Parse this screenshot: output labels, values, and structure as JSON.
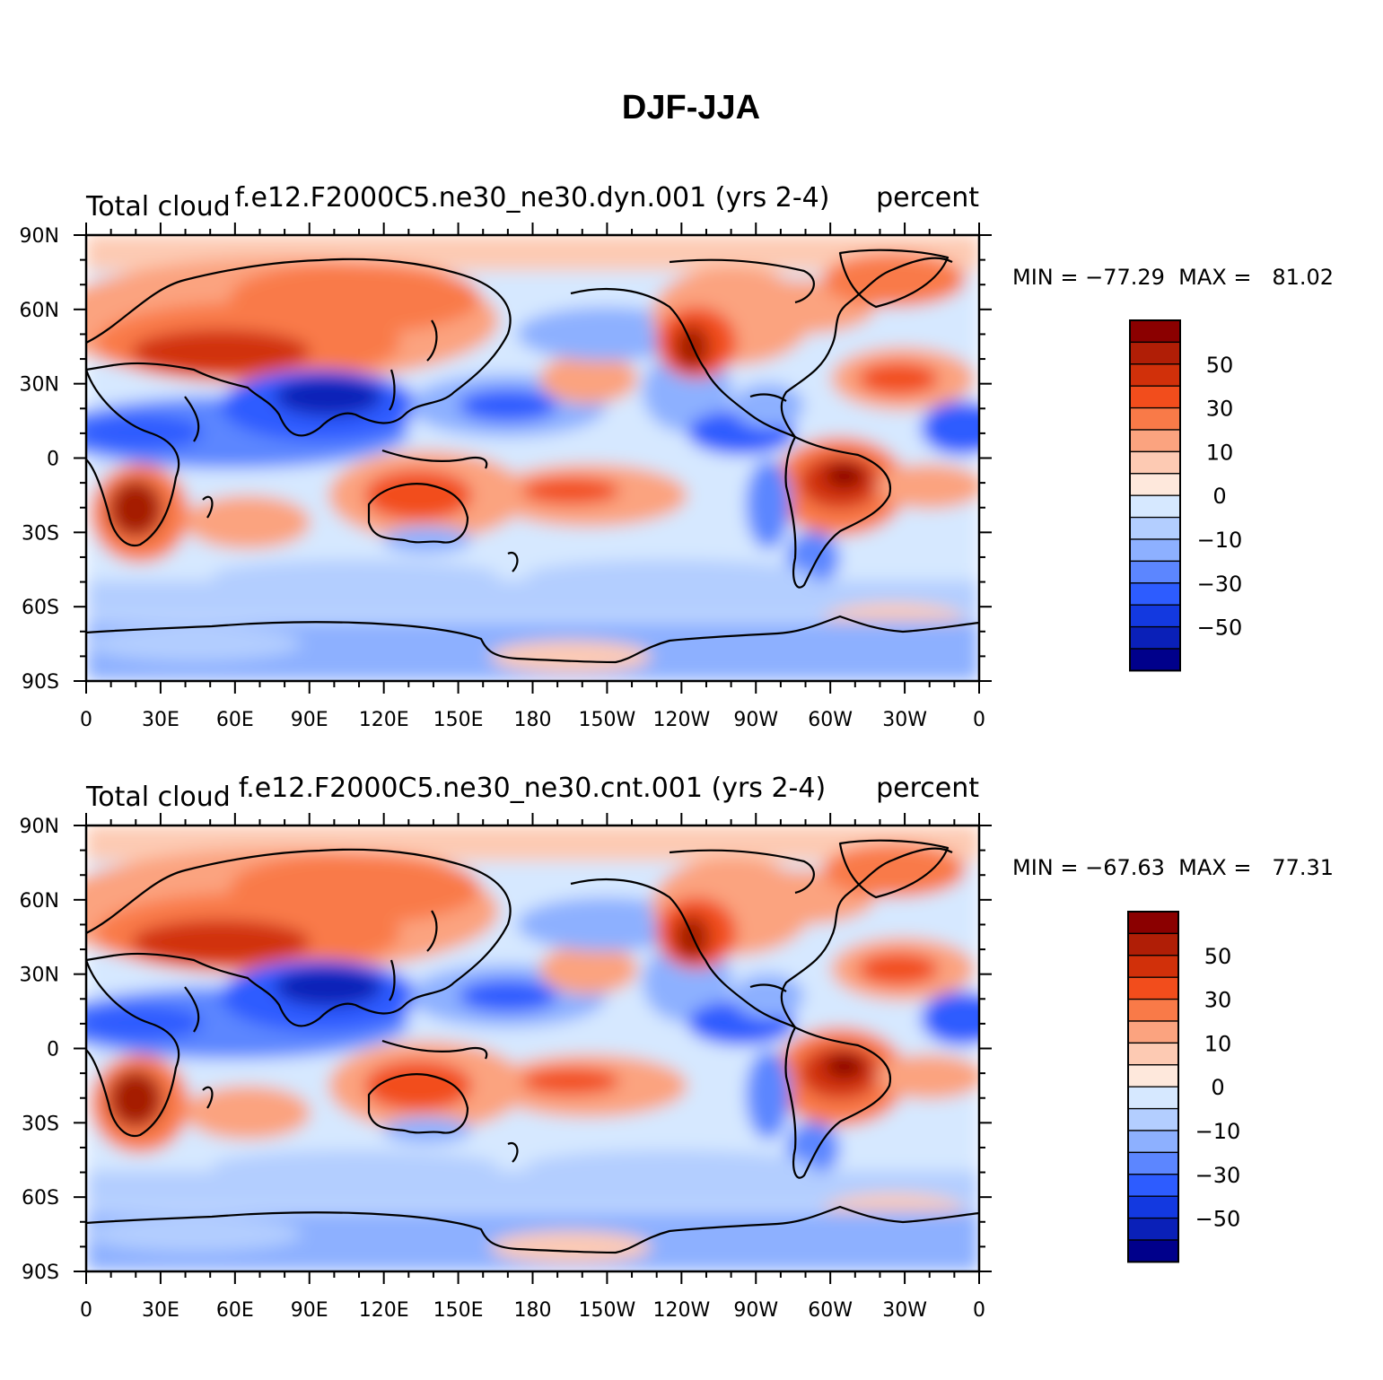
{
  "figure": {
    "title": "DJF-JJA"
  },
  "panels": [
    {
      "left_label": "Total cloud",
      "center_label": "f.e12.F2000C5.ne30_ne30.dyn.001 (yrs 2-4)",
      "right_label": "percent",
      "stats": "MIN = −77.29  MAX =   81.02"
    },
    {
      "left_label": "Total cloud",
      "center_label": "f.e12.F2000C5.ne30_ne30.cnt.001 (yrs 2-4)",
      "right_label": "percent",
      "stats": "MIN = −67.63  MAX =   77.31"
    }
  ],
  "axes": {
    "lat_ticks": [
      "90N",
      "60N",
      "30N",
      "0",
      "30S",
      "60S",
      "90S"
    ],
    "lon_ticks": [
      "0",
      "30E",
      "60E",
      "90E",
      "120E",
      "150E",
      "180",
      "150W",
      "120W",
      "90W",
      "60W",
      "30W",
      "0"
    ]
  },
  "colorbar": {
    "labels": [
      "50",
      "30",
      "10",
      "0",
      "−10",
      "−30",
      "−50"
    ],
    "colors_top_to_bottom": [
      "#8b0000",
      "#b01e06",
      "#d1300a",
      "#f24d1c",
      "#f97a48",
      "#fba37f",
      "#fdcab3",
      "#fee8dc",
      "#d6e8ff",
      "#b3ceff",
      "#8db0ff",
      "#5c86ff",
      "#2d5cff",
      "#1339e0",
      "#0a20b8",
      "#00008b"
    ]
  },
  "map_colors": {
    "dark_red": "#a51a05",
    "red": "#f24d1c",
    "orange": "#f97a48",
    "salmon": "#fba37f",
    "light_salmon": "#fdcab3",
    "cream": "#fee8dc",
    "pale_blue": "#d6e8ff",
    "light_blue": "#b3ceff",
    "blue": "#8db0ff",
    "mid_blue": "#5c86ff",
    "deep_blue": "#2d5cff",
    "dark_blue": "#0a20b8"
  }
}
